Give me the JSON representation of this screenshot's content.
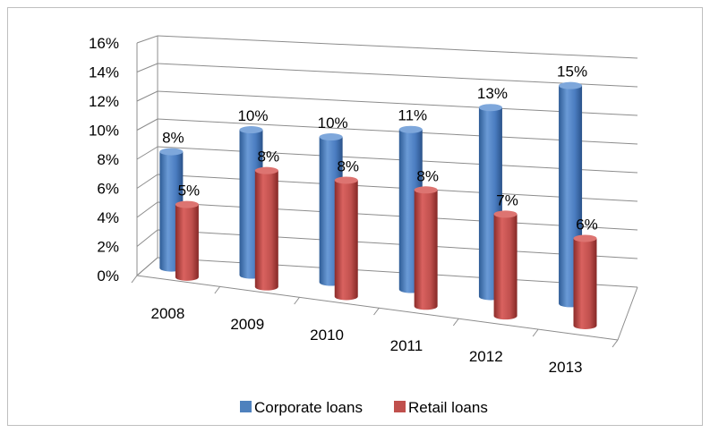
{
  "chart_data": {
    "type": "bar",
    "categories": [
      "2008",
      "2009",
      "2010",
      "2011",
      "2012",
      "2013"
    ],
    "series": [
      {
        "name": "Corporate loans",
        "values": [
          8,
          10,
          10,
          11,
          13,
          15
        ],
        "labels": [
          "8%",
          "10%",
          "10%",
          "11%",
          "13%",
          "15%"
        ],
        "color": "#4f81bd"
      },
      {
        "name": "Retail loans",
        "values": [
          5,
          8,
          8,
          8,
          7,
          6
        ],
        "labels": [
          "5%",
          "8%",
          "8%",
          "8%",
          "7%",
          "6%"
        ],
        "color": "#c0504d"
      }
    ],
    "y_ticks": [
      "0%",
      "2%",
      "4%",
      "6%",
      "8%",
      "10%",
      "12%",
      "14%",
      "16%"
    ],
    "ylim": [
      0,
      16
    ],
    "grid": true,
    "legend": "bottom",
    "style": "3d-cylinder"
  }
}
